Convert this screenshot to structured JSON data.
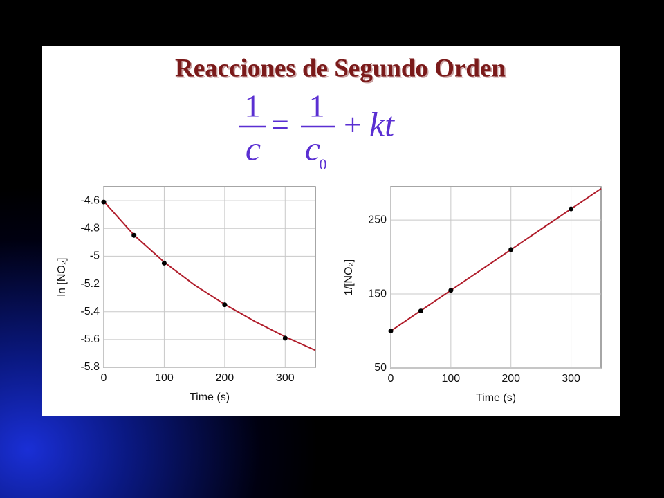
{
  "title": "Reacciones de Segundo Orden",
  "equation": {
    "lhs_num": "1",
    "lhs_den": "c",
    "equals": "=",
    "rhs_num": "1",
    "rhs_den": "c",
    "rhs_sub": "0",
    "plus": "+",
    "term": "kt"
  },
  "chart_data": [
    {
      "type": "line",
      "xlabel": "Time (s)",
      "ylabel": "ln [NO₂]",
      "x": [
        0,
        50,
        100,
        150,
        200,
        250,
        300,
        350
      ],
      "series": [
        {
          "color": "#b01c2a",
          "mode": "line",
          "values": [
            -4.605,
            -4.848,
            -5.043,
            -5.207,
            -5.347,
            -5.47,
            -5.58,
            -5.678
          ]
        },
        {
          "color": "#000000",
          "mode": "markers",
          "values": [
            -4.61,
            -4.85,
            -5.05,
            null,
            -5.35,
            null,
            -5.59,
            null
          ]
        }
      ],
      "xlim": [
        0,
        350
      ],
      "xticks": [
        0,
        100,
        200,
        300
      ],
      "ylim": [
        -5.8,
        -4.5
      ],
      "yticks": [
        -4.6,
        -4.8,
        -5.0,
        -5.2,
        -5.4,
        -5.6,
        -5.8
      ],
      "grid": true
    },
    {
      "type": "line",
      "xlabel": "Time (s)",
      "ylabel": "1/[NO₂]",
      "x": [
        0,
        50,
        100,
        150,
        200,
        250,
        300,
        350
      ],
      "series": [
        {
          "color": "#b01c2a",
          "mode": "line",
          "values": [
            100,
            127.5,
            155,
            182.5,
            210,
            237.5,
            265,
            292.5
          ]
        },
        {
          "color": "#000000",
          "mode": "markers",
          "values": [
            100,
            127,
            155,
            null,
            210,
            null,
            265,
            null
          ]
        }
      ],
      "xlim": [
        0,
        350
      ],
      "xticks": [
        0,
        100,
        200,
        300
      ],
      "ylim": [
        50,
        295
      ],
      "yticks": [
        50,
        150,
        250
      ],
      "grid": true
    }
  ]
}
